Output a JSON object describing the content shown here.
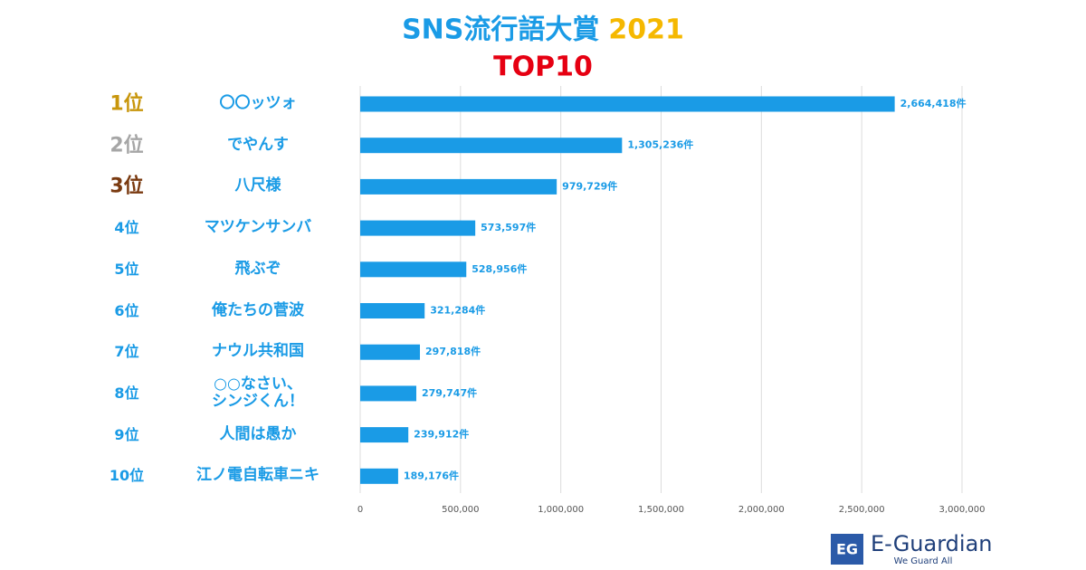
{
  "chart_data": {
    "type": "barh",
    "title": "SNS流行語大賞",
    "title_year": "2021",
    "subtitle": "TOP10",
    "title_color": "#1a9be6",
    "year_color": "#f5b800",
    "subtitle_color": "#e60012",
    "ranks": [
      "1位",
      "2位",
      "3位",
      "4位",
      "5位",
      "6位",
      "7位",
      "8位",
      "9位",
      "10位"
    ],
    "rank_colors": [
      "#c8960c",
      "#a6a6a6",
      "#7a3a10",
      "#1a9be6",
      "#1a9be6",
      "#1a9be6",
      "#1a9be6",
      "#1a9be6",
      "#1a9be6",
      "#1a9be6"
    ],
    "categories": [
      "〇〇ッツォ",
      "でやんす",
      "八尺様",
      "マツケンサンバ",
      "飛ぶぞ",
      "俺たちの菅波",
      "ナウル共和国",
      "○○なさい、\nシンジくん！",
      "人間は愚か",
      "江ノ電自転車ニキ"
    ],
    "values": [
      2664418,
      1305236,
      979729,
      573597,
      528956,
      321284,
      297818,
      279747,
      239912,
      189176
    ],
    "value_labels": [
      "2,664,418件",
      "1,305,236件",
      "979,729件",
      "573,597件",
      "528,956件",
      "321,284件",
      "297,818件",
      "279,747件",
      "239,912件",
      "189,176件"
    ],
    "color": "#1a9be6",
    "xlim": [
      0,
      3000000
    ],
    "xticks": [
      0,
      {
        "value": 500000,
        "label": "500,000"
      },
      {
        "value": 1000000,
        "label": "1,000,000"
      },
      {
        "value": 1500000,
        "label": "1,500,000"
      },
      {
        "value": 2000000,
        "label": "2,000,000"
      },
      {
        "value": 2500000,
        "label": "2,500,000"
      },
      {
        "value": 3000000,
        "label": "3,000,000"
      }
    ],
    "grid": true
  },
  "logo": {
    "icon": "EG",
    "name": "E-Guardian",
    "tagline": "We Guard All"
  }
}
